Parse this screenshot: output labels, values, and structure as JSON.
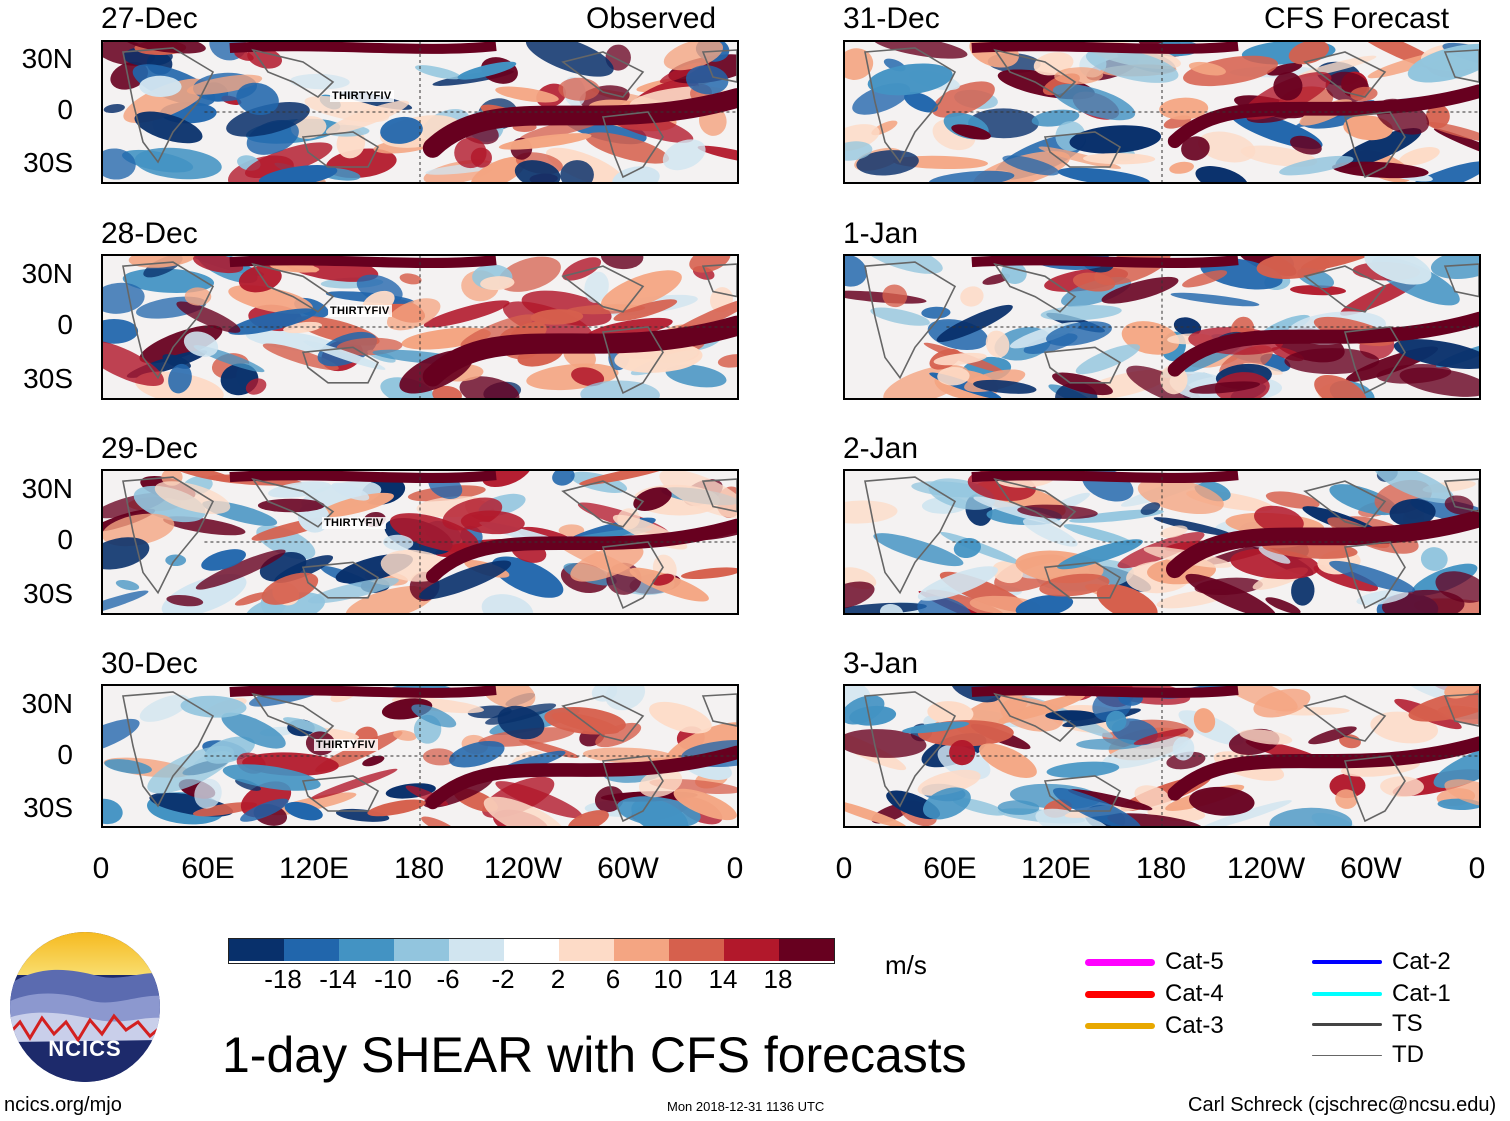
{
  "header": {
    "observed_label": "Observed",
    "forecast_label": "CFS Forecast"
  },
  "panels": {
    "observed": [
      {
        "date": "27-Dec",
        "storm": "THIRTYFIV",
        "seed": 11
      },
      {
        "date": "28-Dec",
        "storm": "THIRTYFIV",
        "seed": 23
      },
      {
        "date": "29-Dec",
        "storm": "THIRTYFIV",
        "seed": 37
      },
      {
        "date": "30-Dec",
        "storm": "THIRTYFIV",
        "seed": 49
      }
    ],
    "forecast": [
      {
        "date": "31-Dec",
        "seed": 61
      },
      {
        "date": "1-Jan",
        "seed": 73
      },
      {
        "date": "2-Jan",
        "seed": 87
      },
      {
        "date": "3-Jan",
        "seed": 97
      }
    ]
  },
  "axes": {
    "y_labels": [
      "30N",
      "0",
      "30S"
    ],
    "x_labels": [
      "0",
      "60E",
      "120E",
      "180",
      "120W",
      "60W",
      "0"
    ]
  },
  "colorbar": {
    "colors": [
      "#08306b",
      "#2166ac",
      "#4393c3",
      "#92c5de",
      "#d1e5f0",
      "#ffffff",
      "#fddbc7",
      "#f4a582",
      "#d6604d",
      "#b2182b",
      "#67001f"
    ],
    "labels": [
      "-18",
      "-14",
      "-10",
      "-6",
      "-2",
      "2",
      "6",
      "10",
      "14",
      "18"
    ],
    "units": "m/s"
  },
  "legend": [
    {
      "label": "Cat-5",
      "color": "#ff00ff",
      "weight": 7
    },
    {
      "label": "Cat-4",
      "color": "#ff0000",
      "weight": 7
    },
    {
      "label": "Cat-3",
      "color": "#e8a800",
      "weight": 6
    },
    {
      "label": "Cat-2",
      "color": "#0000ff",
      "weight": 4
    },
    {
      "label": "Cat-1",
      "color": "#00ffff",
      "weight": 4
    },
    {
      "label": "TS",
      "color": "#444444",
      "weight": 3
    },
    {
      "label": "TD",
      "color": "#666666",
      "weight": 1
    }
  ],
  "footer": {
    "title": "1-day SHEAR with CFS forecasts",
    "logo_text": "NCICS",
    "website": "ncics.org/mjo",
    "timestamp": "Mon 2018-12-31 1136 UTC",
    "author": "Carl Schreck (cjschrec@ncsu.edu)"
  }
}
